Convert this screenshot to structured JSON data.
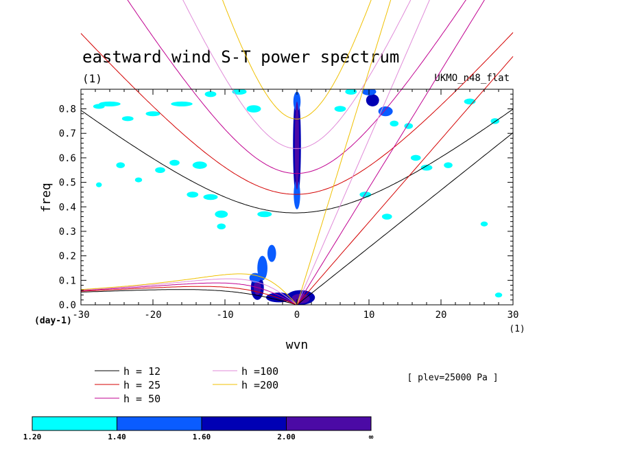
{
  "chart_data": {
    "type": "heatmap",
    "title": "eastward wind S-T power spectrum",
    "units": "(1)",
    "source": "UKMO_n48_flat",
    "xlabel": "wvn",
    "ylabel": "freq",
    "x_unit": "(1)",
    "y_unit": "(day-1)",
    "xlim": [
      -30,
      30
    ],
    "ylim": [
      0,
      0.88
    ],
    "x_ticks": [
      -30,
      -20,
      -10,
      0,
      10,
      20,
      30
    ],
    "x_tick_labels": [
      "-30",
      "-20",
      "-10",
      "0",
      "10",
      "20",
      "30"
    ],
    "y_ticks": [
      0.0,
      0.1,
      0.2,
      0.3,
      0.4,
      0.5,
      0.6,
      0.7,
      0.8
    ],
    "y_tick_labels": [
      "0.0",
      "0.1",
      "0.2",
      "0.3",
      "0.4",
      "0.5",
      "0.6",
      "0.7",
      "0.8"
    ],
    "annotation": "[ plev=25000 Pa ]",
    "dispersion_curves": [
      {
        "label": "h = 12",
        "h": 12,
        "color": "#000000"
      },
      {
        "label": "h = 25",
        "h": 25,
        "color": "#d40000"
      },
      {
        "label": "h = 50",
        "h": 50,
        "color": "#c00090"
      },
      {
        "label": "h =100",
        "h": 100,
        "color": "#e08ad8"
      },
      {
        "label": "h =200",
        "h": 200,
        "color": "#f0c000"
      }
    ],
    "colorbar": {
      "levels": [
        "1.20",
        "1.40",
        "1.60",
        "2.00",
        "∞"
      ],
      "colors": [
        "#00ffff",
        "#0a5cff",
        "#0000b4",
        "#4b0aa5"
      ]
    },
    "regions": [
      {
        "x": 0,
        "y": 0.65,
        "wx": 0.55,
        "wy": 0.22,
        "level": 2
      },
      {
        "x": 0,
        "y": 0.45,
        "wx": 0.45,
        "wy": 0.06,
        "level": 1
      },
      {
        "x": 0,
        "y": 0.83,
        "wx": 0.5,
        "wy": 0.04,
        "level": 1
      },
      {
        "x": 0,
        "y": 0.65,
        "wx": 0.3,
        "wy": 0.18,
        "level": 3
      },
      {
        "x": 0.5,
        "y": 0.03,
        "wx": 2.0,
        "wy": 0.03,
        "level": 2
      },
      {
        "x": 0.5,
        "y": 0.025,
        "wx": 1.3,
        "wy": 0.02,
        "level": 3
      },
      {
        "x": -2.5,
        "y": 0.03,
        "wx": 1.8,
        "wy": 0.02,
        "level": 2
      },
      {
        "x": -5.5,
        "y": 0.07,
        "wx": 0.9,
        "wy": 0.05,
        "level": 2
      },
      {
        "x": -5.5,
        "y": 0.07,
        "wx": 0.5,
        "wy": 0.03,
        "level": 3
      },
      {
        "x": -4.8,
        "y": 0.15,
        "wx": 0.7,
        "wy": 0.05,
        "level": 1
      },
      {
        "x": -3.5,
        "y": 0.21,
        "wx": 0.6,
        "wy": 0.035,
        "level": 1
      },
      {
        "x": -5.8,
        "y": 0.11,
        "wx": 0.8,
        "wy": 0.02,
        "level": 1
      },
      {
        "x": 10.5,
        "y": 0.835,
        "wx": 0.9,
        "wy": 0.025,
        "level": 2
      },
      {
        "x": 12.3,
        "y": 0.79,
        "wx": 1.0,
        "wy": 0.02,
        "level": 1
      },
      {
        "x": 10.0,
        "y": 0.87,
        "wx": 1.0,
        "wy": 0.015,
        "level": 1
      },
      {
        "x": -26,
        "y": 0.82,
        "wx": 1.5,
        "wy": 0.01,
        "level": 0
      },
      {
        "x": -27.5,
        "y": 0.81,
        "wx": 0.8,
        "wy": 0.01,
        "level": 0
      },
      {
        "x": -16,
        "y": 0.82,
        "wx": 1.5,
        "wy": 0.01,
        "level": 0
      },
      {
        "x": -20,
        "y": 0.78,
        "wx": 1.0,
        "wy": 0.01,
        "level": 0
      },
      {
        "x": -23.5,
        "y": 0.76,
        "wx": 0.8,
        "wy": 0.01,
        "level": 0
      },
      {
        "x": -6,
        "y": 0.8,
        "wx": 1.0,
        "wy": 0.015,
        "level": 0
      },
      {
        "x": -13.5,
        "y": 0.57,
        "wx": 1.0,
        "wy": 0.015,
        "level": 0
      },
      {
        "x": -17,
        "y": 0.58,
        "wx": 0.7,
        "wy": 0.012,
        "level": 0
      },
      {
        "x": -19,
        "y": 0.55,
        "wx": 0.7,
        "wy": 0.012,
        "level": 0
      },
      {
        "x": -12,
        "y": 0.44,
        "wx": 1.0,
        "wy": 0.012,
        "level": 0
      },
      {
        "x": -14.5,
        "y": 0.45,
        "wx": 0.8,
        "wy": 0.012,
        "level": 0
      },
      {
        "x": -10.5,
        "y": 0.37,
        "wx": 0.9,
        "wy": 0.015,
        "level": 0
      },
      {
        "x": -10.5,
        "y": 0.32,
        "wx": 0.6,
        "wy": 0.012,
        "level": 0
      },
      {
        "x": -4.5,
        "y": 0.37,
        "wx": 1.0,
        "wy": 0.012,
        "level": 0
      },
      {
        "x": 12.5,
        "y": 0.36,
        "wx": 0.7,
        "wy": 0.012,
        "level": 0
      },
      {
        "x": 9.5,
        "y": 0.45,
        "wx": 0.8,
        "wy": 0.012,
        "level": 0
      },
      {
        "x": 16.5,
        "y": 0.6,
        "wx": 0.7,
        "wy": 0.012,
        "level": 0
      },
      {
        "x": 18,
        "y": 0.56,
        "wx": 0.8,
        "wy": 0.012,
        "level": 0
      },
      {
        "x": 15.5,
        "y": 0.73,
        "wx": 0.6,
        "wy": 0.012,
        "level": 0
      },
      {
        "x": 13.5,
        "y": 0.74,
        "wx": 0.6,
        "wy": 0.012,
        "level": 0
      },
      {
        "x": 24,
        "y": 0.83,
        "wx": 0.8,
        "wy": 0.012,
        "level": 0
      },
      {
        "x": 27.5,
        "y": 0.75,
        "wx": 0.6,
        "wy": 0.012,
        "level": 0
      },
      {
        "x": 21,
        "y": 0.57,
        "wx": 0.6,
        "wy": 0.012,
        "level": 0
      },
      {
        "x": 26,
        "y": 0.33,
        "wx": 0.5,
        "wy": 0.01,
        "level": 0
      },
      {
        "x": 28,
        "y": 0.04,
        "wx": 0.5,
        "wy": 0.01,
        "level": 0
      },
      {
        "x": -24.5,
        "y": 0.57,
        "wx": 0.6,
        "wy": 0.012,
        "level": 0
      },
      {
        "x": -22,
        "y": 0.51,
        "wx": 0.5,
        "wy": 0.01,
        "level": 0
      },
      {
        "x": -27.5,
        "y": 0.49,
        "wx": 0.4,
        "wy": 0.01,
        "level": 0
      },
      {
        "x": 6,
        "y": 0.8,
        "wx": 0.8,
        "wy": 0.012,
        "level": 0
      },
      {
        "x": 7.5,
        "y": 0.87,
        "wx": 0.8,
        "wy": 0.012,
        "level": 0
      },
      {
        "x": -8,
        "y": 0.87,
        "wx": 1.0,
        "wy": 0.012,
        "level": 0
      },
      {
        "x": -12,
        "y": 0.86,
        "wx": 0.8,
        "wy": 0.012,
        "level": 0
      }
    ]
  }
}
